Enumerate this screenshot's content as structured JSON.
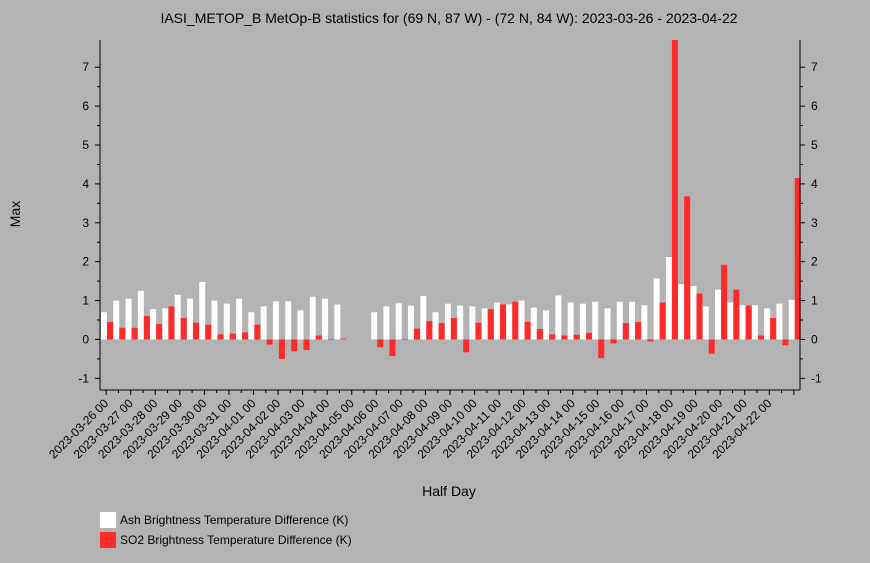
{
  "chart_data": {
    "type": "bar",
    "title": "IASI_METOP_B MetOp-B statistics for (69 N, 87 W) - (72 N, 84 W): 2023-03-26 - 2023-04-22",
    "xlabel": "Half Day",
    "ylabel": "Max",
    "ylim": [
      -1.3,
      7.7
    ],
    "yticks": [
      "-1",
      "0",
      "1",
      "2",
      "3",
      "4",
      "5",
      "6",
      "7"
    ],
    "grid": false,
    "legend_placement": "bottom-left",
    "x_tick_labels": [
      "2023-03-26 00",
      "2023-03-27 00",
      "2023-03-28 00",
      "2023-03-29 00",
      "2023-03-30 00",
      "2023-03-31 00",
      "2023-04-01 00",
      "2023-04-02 00",
      "2023-04-03 00",
      "2023-04-04 00",
      "2023-04-05 00",
      "2023-04-06 00",
      "2023-04-07 00",
      "2023-04-08 00",
      "2023-04-09 00",
      "2023-04-10 00",
      "2023-04-11 00",
      "2023-04-12 00",
      "2023-04-13 00",
      "2023-04-14 00",
      "2023-04-15 00",
      "2023-04-16 00",
      "2023-04-17 00",
      "2023-04-18 00",
      "2023-04-19 00",
      "2023-04-20 00",
      "2023-04-21 00",
      "2023-04-22 00"
    ],
    "series": [
      {
        "name": "Ash Brightness Temperature Difference (K)",
        "color": "#ffffff",
        "values": [
          0.7,
          1.0,
          1.05,
          1.25,
          0.78,
          0.8,
          1.15,
          1.05,
          1.48,
          1.0,
          0.92,
          1.05,
          0.7,
          0.85,
          0.98,
          0.98,
          0.75,
          1.1,
          1.05,
          0.9,
          null,
          null,
          0.7,
          0.85,
          0.93,
          0.87,
          1.12,
          0.7,
          0.92,
          0.87,
          0.85,
          0.8,
          0.95,
          0.9,
          1.0,
          0.82,
          0.75,
          1.13,
          0.95,
          0.92,
          0.97,
          0.8,
          0.97,
          0.97,
          0.88,
          1.57,
          2.12,
          1.42,
          1.37,
          0.85,
          1.28,
          0.95,
          0.88,
          0.88,
          0.8,
          0.92,
          1.02
        ]
      },
      {
        "name": "SO2 Brightness Temperature Difference (K)",
        "color": "#ff2a2a",
        "values": [
          0.45,
          0.3,
          0.3,
          0.6,
          0.4,
          0.85,
          0.55,
          0.43,
          0.38,
          0.13,
          0.15,
          0.18,
          0.38,
          -0.13,
          -0.5,
          -0.3,
          -0.27,
          0.1,
          0.0,
          0.02,
          null,
          null,
          -0.2,
          -0.43,
          0.0,
          0.28,
          0.47,
          0.42,
          0.55,
          -0.33,
          0.43,
          0.78,
          0.9,
          0.97,
          0.45,
          0.27,
          0.13,
          0.1,
          0.12,
          0.17,
          -0.48,
          -0.1,
          0.42,
          0.45,
          -0.05,
          0.95,
          7.72,
          3.68,
          1.18,
          -0.37,
          1.92,
          1.28,
          0.87,
          0.1,
          0.55,
          -0.15,
          4.15
        ]
      }
    ]
  }
}
